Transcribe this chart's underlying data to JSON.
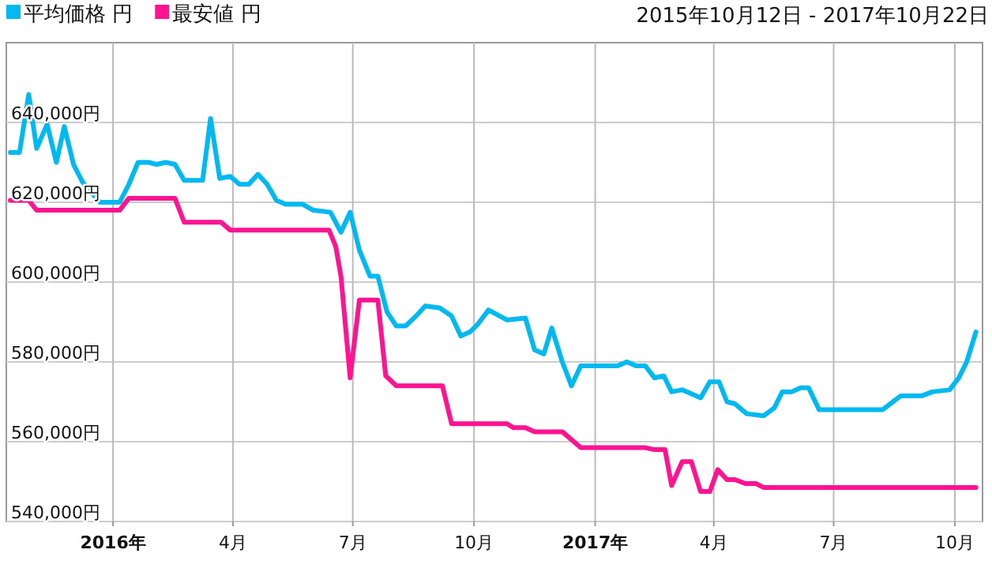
{
  "chart_data": {
    "type": "line",
    "title": "2015年10月12日 - 2017年10月22日",
    "legend": "top left",
    "grid": true,
    "marker": "none",
    "line_style": "solid",
    "xlim": [
      "2015-10-12",
      "2017-10-22"
    ],
    "xticks": [
      {
        "value": "2016-01-01",
        "label": "2016年"
      },
      {
        "value": "2016-04-01",
        "label": "4月"
      },
      {
        "value": "2016-07-01",
        "label": "7月"
      },
      {
        "value": "2016-10-01",
        "label": "10月"
      },
      {
        "value": "2017-01-01",
        "label": "2017年"
      },
      {
        "value": "2017-04-01",
        "label": "4月"
      },
      {
        "value": "2017-07-01",
        "label": "7月"
      },
      {
        "value": "2017-10-01",
        "label": "10月"
      }
    ],
    "ylim": [
      540000,
      660000
    ],
    "yticks": [
      {
        "value": 540000,
        "label": "540,000円"
      },
      {
        "value": 560000,
        "label": "560,000円"
      },
      {
        "value": 580000,
        "label": "580,000円"
      },
      {
        "value": 600000,
        "label": "600,000円"
      },
      {
        "value": 620000,
        "label": "620,000円"
      },
      {
        "value": 640000,
        "label": "640,000円"
      }
    ],
    "series": [
      {
        "name": "平均価格 円",
        "color": "#00b9f1",
        "x": [
          "2015-10-15",
          "2015-10-22",
          "2015-10-29",
          "2015-11-04",
          "2015-11-12",
          "2015-11-19",
          "2015-11-25",
          "2015-12-02",
          "2015-12-09",
          "2015-12-22",
          "2016-01-06",
          "2016-01-13",
          "2016-01-20",
          "2016-01-28",
          "2016-02-03",
          "2016-02-10",
          "2016-02-17",
          "2016-02-24",
          "2016-03-09",
          "2016-03-15",
          "2016-03-22",
          "2016-03-30",
          "2016-04-06",
          "2016-04-13",
          "2016-04-20",
          "2016-04-27",
          "2016-05-04",
          "2016-05-11",
          "2016-05-24",
          "2016-06-01",
          "2016-06-14",
          "2016-06-22",
          "2016-06-29",
          "2016-07-06",
          "2016-07-14",
          "2016-07-20",
          "2016-07-27",
          "2016-08-03",
          "2016-08-10",
          "2016-08-18",
          "2016-08-25",
          "2016-09-05",
          "2016-09-14",
          "2016-09-21",
          "2016-09-28",
          "2016-10-04",
          "2016-10-12",
          "2016-10-26",
          "2016-11-09",
          "2016-11-16",
          "2016-11-23",
          "2016-11-29",
          "2016-12-07",
          "2016-12-14",
          "2016-12-21",
          "2017-01-18",
          "2017-01-25",
          "2017-02-01",
          "2017-02-08",
          "2017-02-15",
          "2017-02-22",
          "2017-02-28",
          "2017-03-08",
          "2017-03-22",
          "2017-03-29",
          "2017-04-05",
          "2017-04-11",
          "2017-04-17",
          "2017-04-26",
          "2017-05-09",
          "2017-05-17",
          "2017-05-23",
          "2017-05-30",
          "2017-06-06",
          "2017-06-12",
          "2017-06-20",
          "2017-08-07",
          "2017-08-15",
          "2017-08-21",
          "2017-09-06",
          "2017-09-14",
          "2017-09-27",
          "2017-10-04",
          "2017-10-10",
          "2017-10-17"
        ],
        "values": [
          632500,
          632500,
          647000,
          633500,
          639500,
          630000,
          639000,
          629500,
          625000,
          620000,
          620000,
          624500,
          630000,
          630000,
          629500,
          630000,
          629500,
          625500,
          625500,
          641000,
          626000,
          626500,
          624500,
          624500,
          627000,
          624500,
          620500,
          619500,
          619500,
          618000,
          617500,
          612500,
          617500,
          608000,
          601500,
          601500,
          592500,
          589000,
          589000,
          591500,
          594000,
          593500,
          591500,
          586500,
          587500,
          589500,
          593000,
          590500,
          591000,
          583000,
          582000,
          588500,
          580000,
          574000,
          579000,
          579000,
          580000,
          579000,
          579000,
          576000,
          576500,
          572500,
          573000,
          571000,
          575000,
          575000,
          570000,
          569500,
          567000,
          566500,
          568500,
          572500,
          572500,
          573500,
          573500,
          568000,
          568000,
          570000,
          571500,
          571500,
          572500,
          573000,
          576000,
          580000,
          587500
        ]
      },
      {
        "name": "最安値 円",
        "color": "#fe1490",
        "x": [
          "2015-10-15",
          "2015-10-29",
          "2015-11-04",
          "2016-01-06",
          "2016-01-13",
          "2016-02-17",
          "2016-02-24",
          "2016-03-23",
          "2016-03-30",
          "2016-06-13",
          "2016-06-18",
          "2016-06-22",
          "2016-06-29",
          "2016-07-06",
          "2016-07-20",
          "2016-07-26",
          "2016-08-03",
          "2016-09-07",
          "2016-09-14",
          "2016-10-26",
          "2016-10-31",
          "2016-11-09",
          "2016-11-16",
          "2016-12-07",
          "2016-12-21",
          "2017-02-08",
          "2017-02-15",
          "2017-02-23",
          "2017-02-28",
          "2017-03-08",
          "2017-03-15",
          "2017-03-22",
          "2017-03-29",
          "2017-04-04",
          "2017-04-11",
          "2017-04-17",
          "2017-04-25",
          "2017-05-03",
          "2017-05-09",
          "2017-10-17"
        ],
        "values": [
          620500,
          620500,
          618000,
          618000,
          621000,
          621000,
          615000,
          615000,
          613000,
          613000,
          609000,
          601500,
          576000,
          595500,
          595500,
          576500,
          574000,
          574000,
          564500,
          564500,
          563500,
          563500,
          562500,
          562500,
          558500,
          558500,
          558000,
          558000,
          549000,
          555000,
          555000,
          547500,
          547500,
          553000,
          550500,
          550500,
          549500,
          549500,
          548500,
          548500
        ]
      }
    ]
  }
}
